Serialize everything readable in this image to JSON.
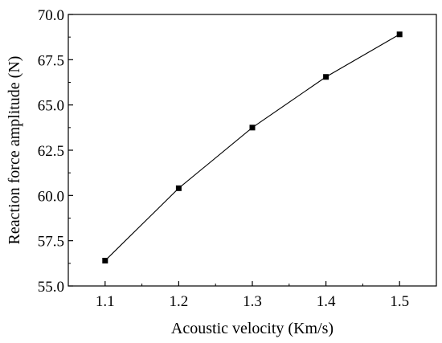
{
  "chart_data": {
    "type": "line",
    "title": "",
    "xlabel": "Acoustic velocity (Km/s)",
    "ylabel": "Reaction force amplitude (N)",
    "xlim": [
      1.05,
      1.55
    ],
    "ylim": [
      55.0,
      70.0
    ],
    "xticks": [
      1.1,
      1.2,
      1.3,
      1.4,
      1.5
    ],
    "yticks": [
      55.0,
      57.5,
      60.0,
      62.5,
      65.0,
      67.5,
      70.0
    ],
    "xtick_labels": [
      "1.1",
      "1.2",
      "1.3",
      "1.4",
      "1.5"
    ],
    "ytick_labels": [
      "55.0",
      "57.5",
      "60.0",
      "62.5",
      "65.0",
      "67.5",
      "70.0"
    ],
    "grid": false,
    "legend": "none",
    "series": [
      {
        "marker": "square",
        "color": "#000000",
        "x": [
          1.1,
          1.2,
          1.3,
          1.4,
          1.5
        ],
        "y": [
          56.4,
          60.4,
          63.75,
          66.55,
          68.9
        ]
      }
    ]
  }
}
